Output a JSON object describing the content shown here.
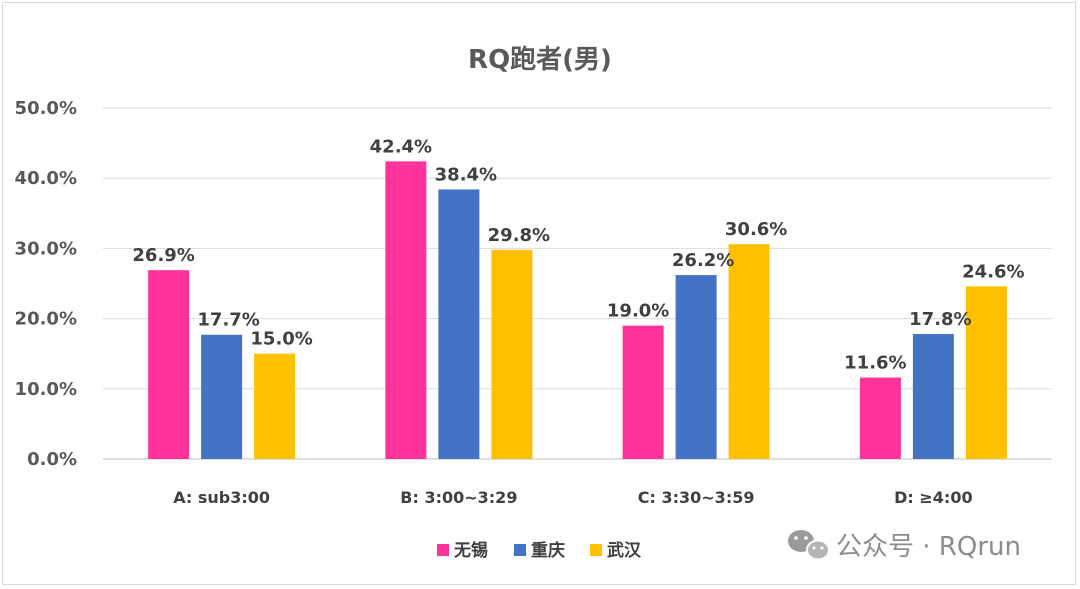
{
  "chart_data": {
    "type": "bar",
    "title": "RQ跑者(男)",
    "categories": [
      "A: sub3:00",
      "B: 3:00~3:29",
      "C: 3:30~3:59",
      "D: ≥4:00"
    ],
    "series": [
      {
        "name": "无锡",
        "color": "#FF3399",
        "values": [
          26.9,
          42.4,
          19.0,
          11.6
        ],
        "labels": [
          "26.9%",
          "42.4%",
          "19.0%",
          "11.6%"
        ]
      },
      {
        "name": "重庆",
        "color": "#4472C4",
        "values": [
          17.7,
          38.4,
          26.2,
          17.8
        ],
        "labels": [
          "17.7%",
          "38.4%",
          "26.2%",
          "17.8%"
        ]
      },
      {
        "name": "武汉",
        "color": "#FFC000",
        "values": [
          15.0,
          29.8,
          30.6,
          24.6
        ],
        "labels": [
          "15.0%",
          "29.8%",
          "30.6%",
          "24.6%"
        ]
      }
    ],
    "y_ticks": [
      "0.0%",
      "10.0%",
      "20.0%",
      "30.0%",
      "40.0%",
      "50.0%"
    ],
    "ylim": [
      0,
      50
    ],
    "xlabel": "",
    "ylabel": "",
    "grid": true,
    "legend_position": "bottom"
  },
  "watermark": {
    "text": "公众号 · RQrun",
    "icon": "wechat-icon"
  }
}
